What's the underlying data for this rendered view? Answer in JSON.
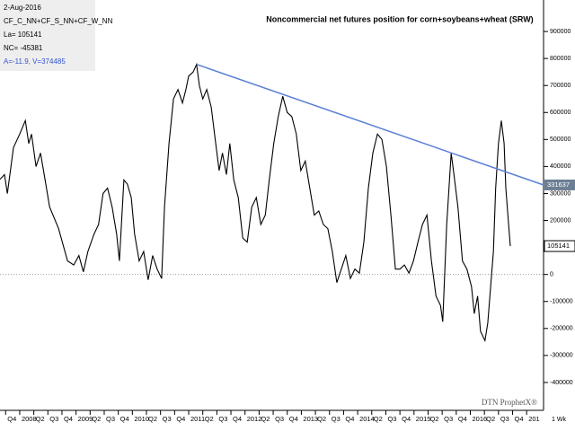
{
  "chart_data": {
    "type": "line",
    "title": "Noncommercial net futures position for corn+soybeans+wheat (SRW)",
    "info": [
      "2-Aug-2016",
      "CF_C_NN+CF_S_NN+CF_W_NN",
      "La= 105141",
      "NC= -45381",
      "A=-11.9, V=374485"
    ],
    "watermark": "DTN ProphetX®",
    "period": "1 Wk",
    "x": [
      2007.65,
      2007.73,
      2007.78,
      2007.89,
      2008.0,
      2008.1,
      2008.16,
      2008.21,
      2008.29,
      2008.37,
      2008.45,
      2008.53,
      2008.69,
      2008.85,
      2008.96,
      2009.05,
      2009.13,
      2009.21,
      2009.32,
      2009.4,
      2009.48,
      2009.56,
      2009.64,
      2009.72,
      2009.77,
      2009.85,
      2009.91,
      2009.98,
      2010.04,
      2010.12,
      2010.2,
      2010.28,
      2010.36,
      2010.44,
      2010.52,
      2010.57,
      2010.65,
      2010.73,
      2010.81,
      2010.89,
      2010.95,
      2011.0,
      2011.08,
      2011.14,
      2011.19,
      2011.25,
      2011.32,
      2011.4,
      2011.48,
      2011.54,
      2011.6,
      2011.67,
      2011.73,
      2011.8,
      2011.88,
      2011.96,
      2012.04,
      2012.12,
      2012.2,
      2012.28,
      2012.36,
      2012.43,
      2012.51,
      2012.59,
      2012.67,
      2012.75,
      2012.83,
      2012.91,
      2012.99,
      2013.07,
      2013.15,
      2013.23,
      2013.31,
      2013.39,
      2013.47,
      2013.55,
      2013.63,
      2013.71,
      2013.79,
      2013.87,
      2013.95,
      2014.03,
      2014.11,
      2014.19,
      2014.27,
      2014.35,
      2014.43,
      2014.51,
      2014.59,
      2014.67,
      2014.75,
      2014.83,
      2014.91,
      2014.99,
      2015.07,
      2015.15,
      2015.23,
      2015.31,
      2015.39,
      2015.47,
      2015.51,
      2015.58,
      2015.66,
      2015.7,
      2015.78,
      2015.86,
      2015.94,
      2016.02,
      2016.07,
      2016.13,
      2016.18,
      2016.26,
      2016.31,
      2016.36,
      2016.41,
      2016.45,
      2016.5,
      2016.55,
      2016.6,
      2016.63,
      2016.68,
      2016.71
    ],
    "series": [
      {
        "color": "#000000",
        "values": [
          352000,
          370000,
          300000,
          470000,
          520000,
          570000,
          485000,
          520000,
          400000,
          450000,
          350000,
          250000,
          170000,
          50000,
          35000,
          70000,
          10000,
          85000,
          150000,
          185000,
          300000,
          320000,
          250000,
          150000,
          50000,
          350000,
          335000,
          285000,
          150000,
          50000,
          85000,
          -20000,
          70000,
          20000,
          -15000,
          250000,
          485000,
          650000,
          685000,
          635000,
          685000,
          735000,
          750000,
          778000,
          700000,
          650000,
          685000,
          620000,
          485000,
          385000,
          450000,
          370000,
          485000,
          350000,
          285000,
          135000,
          120000,
          250000,
          285000,
          185000,
          220000,
          350000,
          485000,
          585000,
          660000,
          600000,
          585000,
          520000,
          385000,
          420000,
          320000,
          220000,
          235000,
          185000,
          170000,
          85000,
          -30000,
          20000,
          70000,
          -15000,
          20000,
          5000,
          120000,
          320000,
          450000,
          520000,
          500000,
          400000,
          220000,
          20000,
          20000,
          35000,
          5000,
          50000,
          120000,
          185000,
          220000,
          50000,
          -80000,
          -115000,
          -175000,
          185000,
          450000,
          385000,
          250000,
          50000,
          20000,
          -45000,
          -145000,
          -80000,
          -210000,
          -245000,
          -180000,
          -45000,
          85000,
          320000,
          485000,
          570000,
          485000,
          320000,
          185000,
          105141
        ]
      }
    ],
    "trendline": {
      "color": "#5b7fd6",
      "x": [
        2011.14,
        2017.3
      ],
      "values": [
        778000,
        331637
      ]
    },
    "xlim": [
      2007.65,
      2017.3
    ],
    "xticks": [
      {
        "value": 2007.75,
        "label": "Q4"
      },
      2008,
      {
        "value": 2008.25,
        "label": "Q2"
      },
      {
        "value": 2008.5,
        "label": "Q3"
      },
      {
        "value": 2008.75,
        "label": "Q4"
      },
      2009,
      {
        "value": 2009.25,
        "label": "Q2"
      },
      {
        "value": 2009.5,
        "label": "Q3"
      },
      {
        "value": 2009.75,
        "label": "Q4"
      },
      2010,
      {
        "value": 2010.25,
        "label": "Q2"
      },
      {
        "value": 2010.5,
        "label": "Q3"
      },
      {
        "value": 2010.75,
        "label": "Q4"
      },
      2011,
      {
        "value": 2011.25,
        "label": "Q2"
      },
      {
        "value": 2011.5,
        "label": "Q3"
      },
      {
        "value": 2011.75,
        "label": "Q4"
      },
      2012,
      {
        "value": 2012.25,
        "label": "Q2"
      },
      {
        "value": 2012.5,
        "label": "Q3"
      },
      {
        "value": 2012.75,
        "label": "Q4"
      },
      2013,
      {
        "value": 2013.25,
        "label": "Q2"
      },
      {
        "value": 2013.5,
        "label": "Q3"
      },
      {
        "value": 2013.75,
        "label": "Q4"
      },
      2014,
      {
        "value": 2014.25,
        "label": "Q2"
      },
      {
        "value": 2014.5,
        "label": "Q3"
      },
      {
        "value": 2014.75,
        "label": "Q4"
      },
      2015,
      {
        "value": 2015.25,
        "label": "Q2"
      },
      {
        "value": 2015.5,
        "label": "Q3"
      },
      {
        "value": 2015.75,
        "label": "Q4"
      },
      2016,
      {
        "value": 2016.25,
        "label": "Q2"
      },
      {
        "value": 2016.5,
        "label": "Q3"
      },
      {
        "value": 2016.75,
        "label": "Q4"
      },
      {
        "value": 2017,
        "label": "201"
      }
    ],
    "ylim": [
      -500000,
      1000000
    ],
    "yticks": [
      -400000,
      -300000,
      -200000,
      -100000,
      0,
      100000,
      200000,
      300000,
      400000,
      500000,
      600000,
      700000,
      800000,
      900000
    ]
  }
}
